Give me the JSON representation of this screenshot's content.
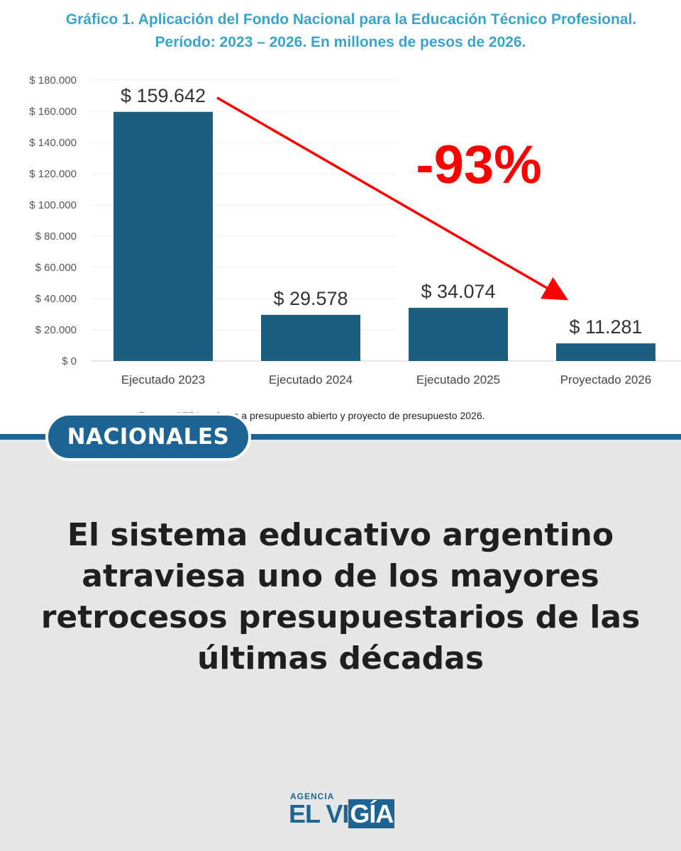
{
  "chart_data": {
    "type": "bar",
    "title": "Gráfico 1. Aplicación del Fondo Nacional para la Educación Técnico Profesional.",
    "subtitle": "Período: 2023 – 2026. En millones de pesos de 2026.",
    "categories": [
      "Ejecutado 2023",
      "Ejecutado 2024",
      "Ejecutado 2025",
      "Proyectado 2026"
    ],
    "values": [
      159642,
      29578,
      34074,
      11281
    ],
    "value_labels": [
      "$ 159.642",
      "$ 29.578",
      "$ 34.074",
      "$ 11.281"
    ],
    "ylim": [
      0,
      180000
    ],
    "yticks": [
      0,
      20000,
      40000,
      60000,
      80000,
      100000,
      120000,
      140000,
      160000,
      180000
    ],
    "ytick_labels": [
      "$ 0",
      "$ 20.000",
      "$ 40.000",
      "$ 60.000",
      "$ 80.000",
      "$ 100.000",
      "$ 120.000",
      "$ 140.000",
      "$ 160.000",
      "$ 180.000"
    ],
    "grid": true,
    "bar_color": "#1b5e80",
    "annotation": {
      "text": "-93%",
      "color": "#ff0000",
      "arrow_from": "Ejecutado 2023",
      "arrow_to": "Proyectado 2026"
    },
    "source": "Fuente: CEPA en base a presupuesto abierto y proyecto de presupuesto 2026."
  },
  "banner": {
    "category": "NACIONALES"
  },
  "headline": "El sistema educativo argentino atraviesa uno de los mayores retrocesos presupuestarios de las últimas décadas",
  "logo": {
    "top_text": "AGENCIA",
    "main_text": "EL VIGÍA",
    "main_part1": "EL VI",
    "main_part2": "GÍA"
  },
  "colors": {
    "brand": "#1b6494",
    "title": "#3aa3c9",
    "arrow": "#ff0000",
    "background": "#e6e6e6"
  }
}
